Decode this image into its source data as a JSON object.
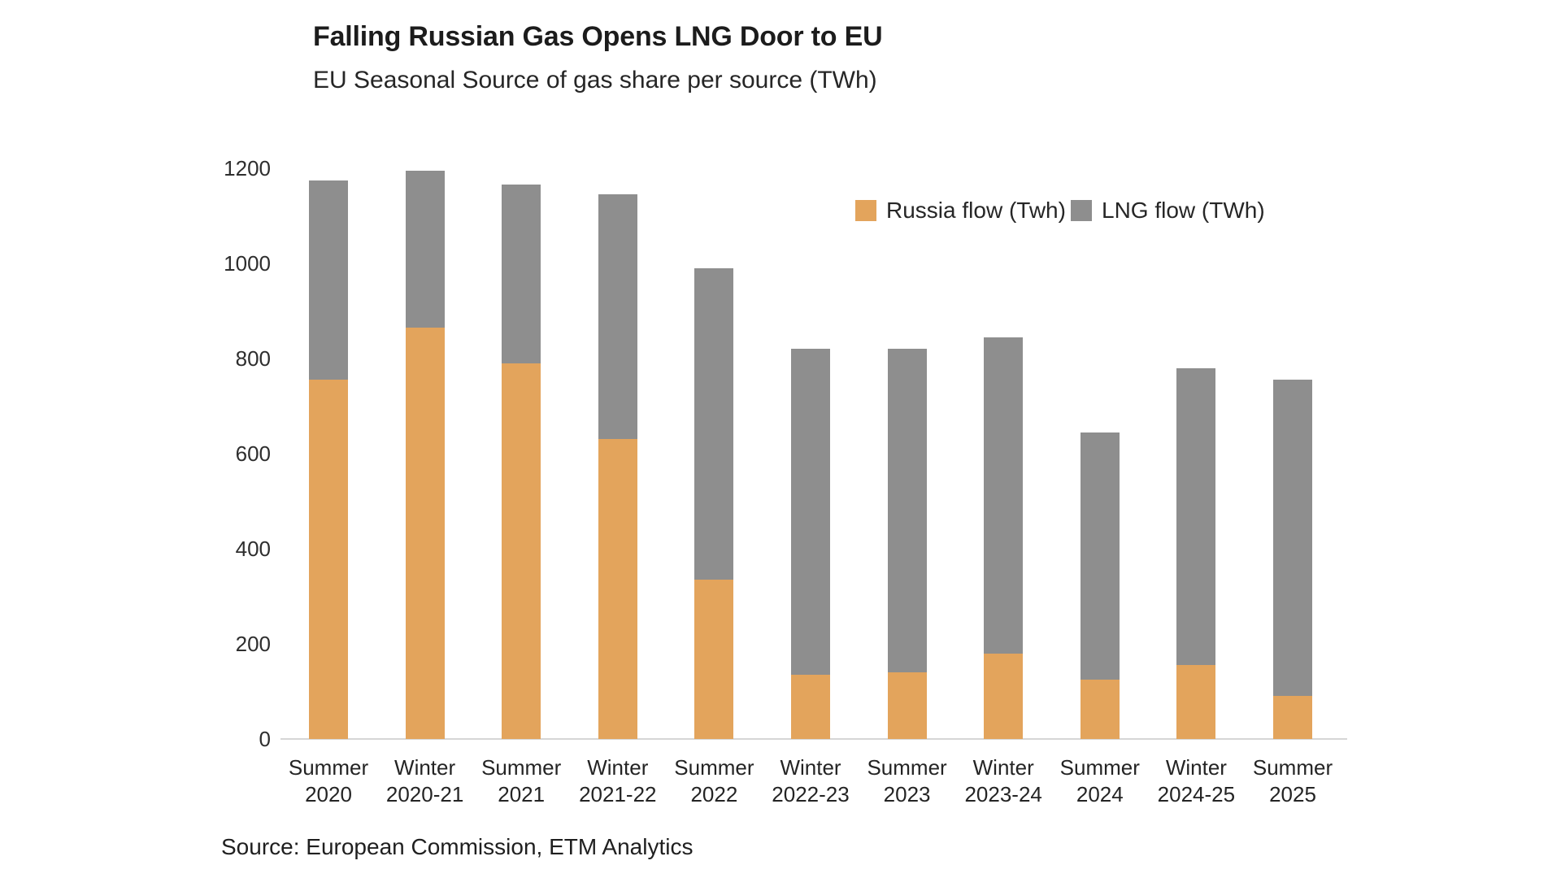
{
  "page": {
    "background": "#ffffff"
  },
  "header": {
    "title": "Falling Russian Gas Opens LNG Door to EU",
    "subtitle": "EU Seasonal Source of gas share per source (TWh)"
  },
  "footer": {
    "source": "Source: European Commission, ETM Analytics"
  },
  "chart_data": {
    "type": "bar",
    "stacked": true,
    "title": "Falling Russian Gas Opens LNG Door to EU",
    "subtitle": "EU Seasonal Source of gas share per source (TWh)",
    "categories": [
      [
        "Summer",
        "2020"
      ],
      [
        "Winter",
        "2020-21"
      ],
      [
        "Summer",
        "2021"
      ],
      [
        "Winter",
        "2021-22"
      ],
      [
        "Summer",
        "2022"
      ],
      [
        "Winter",
        "2022-23"
      ],
      [
        "Summer",
        "2023"
      ],
      [
        "Winter",
        "2023-24"
      ],
      [
        "Summer",
        "2024"
      ],
      [
        "Winter",
        "2024-25"
      ],
      [
        "Summer",
        "2025"
      ]
    ],
    "series": [
      {
        "name": "Russia flow (Twh)",
        "color": "#E3A45C",
        "values": [
          755,
          865,
          790,
          630,
          335,
          135,
          140,
          180,
          125,
          155,
          90
        ]
      },
      {
        "name": "LNG flow (TWh)",
        "color": "#8E8E8E",
        "values": [
          420,
          330,
          375,
          515,
          655,
          685,
          680,
          665,
          520,
          625,
          665
        ]
      }
    ],
    "totals": [
      1175,
      1195,
      1165,
      1145,
      990,
      820,
      820,
      845,
      645,
      780,
      755
    ],
    "xlabel": "",
    "ylabel": "",
    "ylim": [
      0,
      1200
    ],
    "yticks": [
      0,
      200,
      400,
      600,
      800,
      1000,
      1200
    ],
    "grid": false,
    "legend_position": "top-right",
    "axis_line_color": "#D6D6D6",
    "text_color": "#262626"
  }
}
